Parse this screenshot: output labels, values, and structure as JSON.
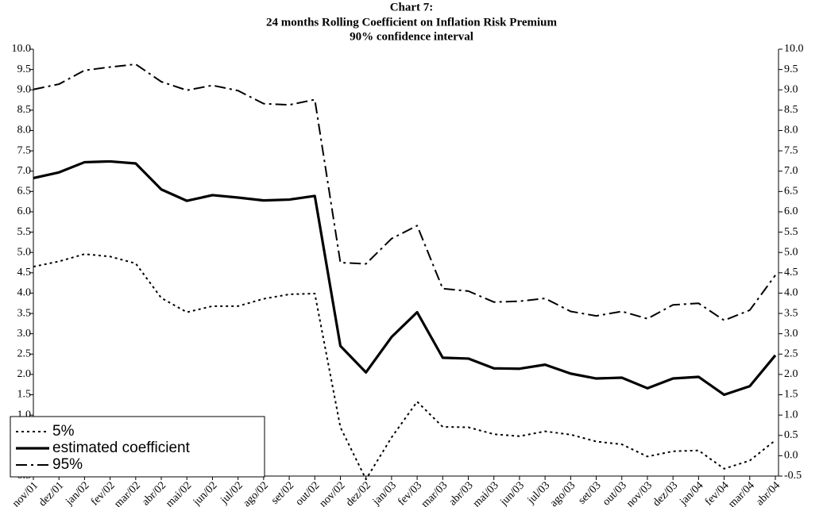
{
  "chart_data": {
    "type": "line",
    "title": "Chart 7:",
    "subtitle": "24 months Rolling Coefficient on Inflation Risk Premium",
    "annotation": "90% confidence interval",
    "categories": [
      "nov/01",
      "dez/01",
      "jan/02",
      "fev/02",
      "mar/02",
      "abr/02",
      "mai/02",
      "jun/02",
      "jul/02",
      "ago/02",
      "set/02",
      "out/02",
      "nov/02",
      "dez/02",
      "jan/03",
      "fev/03",
      "mar/03",
      "abr/03",
      "mai/03",
      "jun/03",
      "jul/03",
      "ago/03",
      "set/03",
      "out/03",
      "nov/03",
      "dez/03",
      "jan/04",
      "fev/04",
      "mar/04",
      "abr/04"
    ],
    "series": [
      {
        "name": "5%",
        "color": "#000000",
        "values": [
          4.65,
          4.78,
          4.96,
          4.9,
          4.73,
          3.88,
          3.53,
          3.68,
          3.68,
          3.86,
          3.97,
          3.99,
          0.7,
          -0.58,
          0.45,
          1.33,
          0.71,
          0.7,
          0.53,
          0.48,
          0.6,
          0.52,
          0.35,
          0.28,
          -0.02,
          0.11,
          0.13,
          -0.32,
          -0.12,
          0.38
        ]
      },
      {
        "name": "estimated coefficient",
        "color": "#000000",
        "values": [
          6.83,
          6.97,
          7.22,
          7.24,
          7.19,
          6.55,
          6.27,
          6.41,
          6.35,
          6.28,
          6.3,
          6.39,
          2.7,
          2.05,
          2.92,
          3.53,
          2.41,
          2.39,
          2.15,
          2.14,
          2.24,
          2.02,
          1.9,
          1.92,
          1.66,
          1.9,
          1.94,
          1.5,
          1.71,
          2.47
        ]
      },
      {
        "name": "95%",
        "color": "#000000",
        "values": [
          9.01,
          9.14,
          9.48,
          9.56,
          9.63,
          9.2,
          8.99,
          9.11,
          8.98,
          8.66,
          8.63,
          8.76,
          4.75,
          4.72,
          5.34,
          5.66,
          4.11,
          4.05,
          3.78,
          3.8,
          3.87,
          3.55,
          3.44,
          3.55,
          3.37,
          3.71,
          3.75,
          3.33,
          3.58,
          4.44
        ]
      }
    ],
    "ylim": [
      -0.5,
      10
    ],
    "yticks": [
      -0.5,
      {
        "value": 0,
        "label": "0.0"
      },
      0.5,
      {
        "value": 1,
        "label": "1.0"
      },
      1.5,
      {
        "value": 2,
        "label": "2.0"
      },
      2.5,
      {
        "value": 3,
        "label": "3.0"
      },
      3.5,
      {
        "value": 4,
        "label": "4.0"
      },
      4.5,
      {
        "value": 5,
        "label": "5.0"
      },
      5.5,
      {
        "value": 6,
        "label": "6.0"
      },
      6.5,
      {
        "value": 7,
        "label": "7.0"
      },
      7.5,
      {
        "value": 8,
        "label": "8.0"
      },
      8.5,
      {
        "value": 9,
        "label": "9.0"
      },
      9.5,
      {
        "value": 10,
        "label": "10.0"
      }
    ],
    "grid": false,
    "legend": "lower left"
  }
}
